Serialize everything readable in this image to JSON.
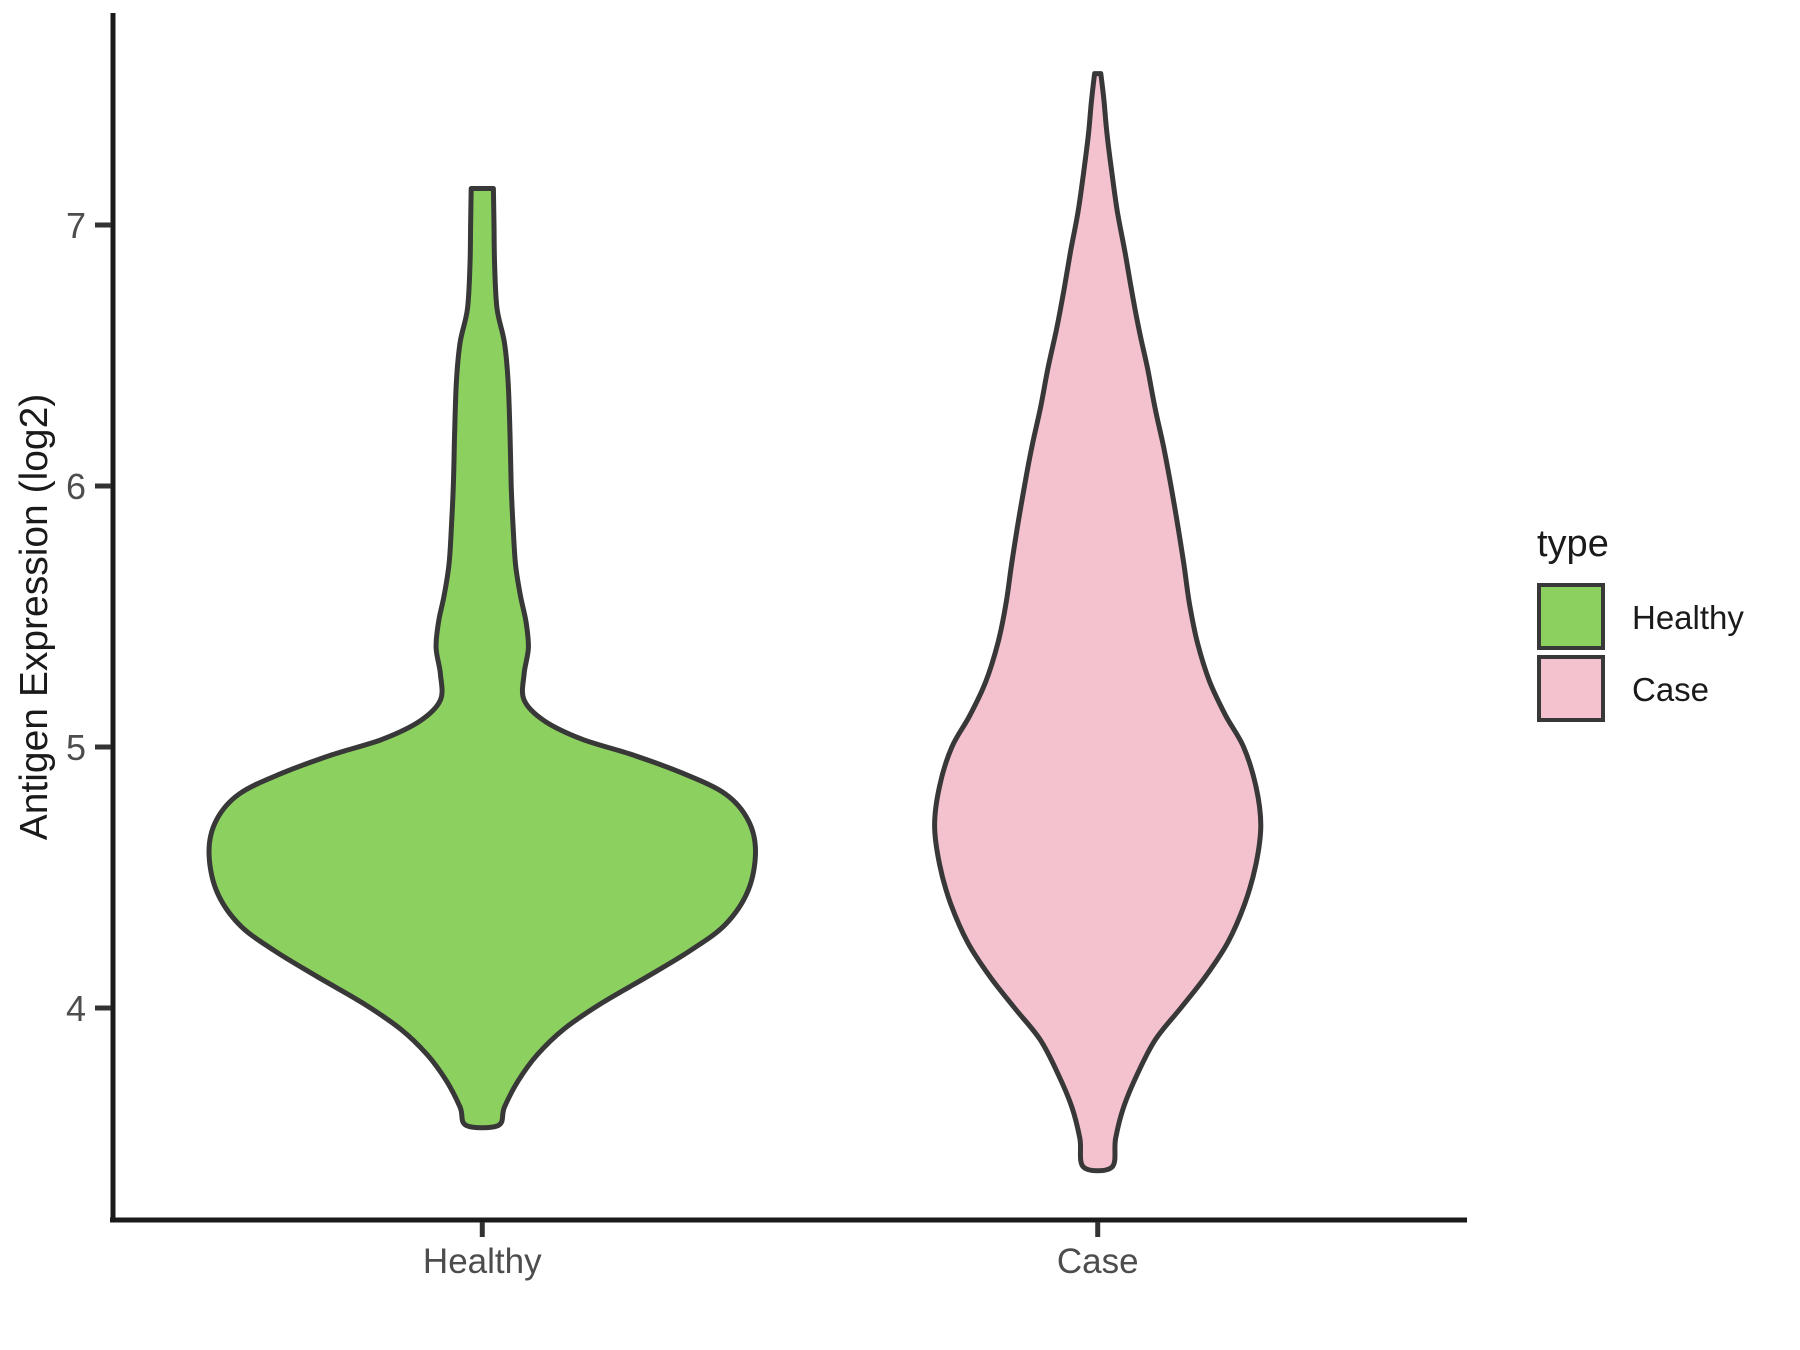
{
  "chart_data": {
    "type": "violin",
    "title": "",
    "xlabel": "",
    "ylabel": "Antigen Expression (log2)",
    "categories": [
      "Healthy",
      "Case"
    ],
    "y_tick_labels": [
      "4",
      "5",
      "6",
      "7"
    ],
    "y_tick_values": [
      4,
      5,
      6,
      7
    ],
    "ylim": [
      3.2,
      7.75
    ],
    "grid": "off",
    "theme": "classic-white",
    "legend": {
      "title": "type",
      "position": "right",
      "entries": [
        {
          "label": "Healthy",
          "fill": "#8CD05F"
        },
        {
          "label": "Case",
          "fill": "#F4C2CE"
        }
      ]
    },
    "colors": {
      "healthy_fill": "#8CD05F",
      "case_fill": "#F4C2CE",
      "outline": "#383838",
      "axis": "#1A1A1A",
      "tick_text": "#4D4D4D"
    },
    "series": [
      {
        "name": "Healthy",
        "fill": "#8CD05F",
        "outline": "#383838",
        "y_min": 3.55,
        "y_max": 7.14,
        "widest_at": 4.6,
        "density_profile": [
          [
            3.55,
            0.026
          ],
          [
            3.62,
            0.036
          ],
          [
            3.72,
            0.058
          ],
          [
            3.82,
            0.089
          ],
          [
            3.92,
            0.133
          ],
          [
            4.02,
            0.195
          ],
          [
            4.12,
            0.268
          ],
          [
            4.22,
            0.338
          ],
          [
            4.32,
            0.395
          ],
          [
            4.45,
            0.432
          ],
          [
            4.6,
            0.444
          ],
          [
            4.72,
            0.432
          ],
          [
            4.82,
            0.395
          ],
          [
            4.9,
            0.325
          ],
          [
            4.97,
            0.244
          ],
          [
            5.03,
            0.162
          ],
          [
            5.1,
            0.101
          ],
          [
            5.18,
            0.068
          ],
          [
            5.28,
            0.068
          ],
          [
            5.38,
            0.075
          ],
          [
            5.48,
            0.071
          ],
          [
            5.58,
            0.062
          ],
          [
            5.7,
            0.054
          ],
          [
            5.85,
            0.05
          ],
          [
            6.0,
            0.047
          ],
          [
            6.2,
            0.045
          ],
          [
            6.4,
            0.042
          ],
          [
            6.55,
            0.036
          ],
          [
            6.68,
            0.024
          ],
          [
            6.85,
            0.02
          ],
          [
            7.0,
            0.019
          ],
          [
            7.14,
            0.018
          ]
        ]
      },
      {
        "name": "Case",
        "fill": "#F4C2CE",
        "outline": "#383838",
        "y_min": 3.39,
        "y_max": 7.58,
        "widest_at": 4.7,
        "density_profile": [
          [
            3.39,
            0.023
          ],
          [
            3.5,
            0.029
          ],
          [
            3.62,
            0.042
          ],
          [
            3.75,
            0.065
          ],
          [
            3.88,
            0.094
          ],
          [
            4.0,
            0.135
          ],
          [
            4.12,
            0.175
          ],
          [
            4.25,
            0.211
          ],
          [
            4.4,
            0.239
          ],
          [
            4.55,
            0.257
          ],
          [
            4.7,
            0.265
          ],
          [
            4.85,
            0.257
          ],
          [
            5.0,
            0.237
          ],
          [
            5.12,
            0.208
          ],
          [
            5.25,
            0.182
          ],
          [
            5.4,
            0.162
          ],
          [
            5.55,
            0.149
          ],
          [
            5.7,
            0.14
          ],
          [
            5.85,
            0.13
          ],
          [
            6.0,
            0.119
          ],
          [
            6.15,
            0.107
          ],
          [
            6.3,
            0.093
          ],
          [
            6.45,
            0.081
          ],
          [
            6.6,
            0.067
          ],
          [
            6.75,
            0.055
          ],
          [
            6.9,
            0.044
          ],
          [
            7.05,
            0.032
          ],
          [
            7.2,
            0.023
          ],
          [
            7.35,
            0.015
          ],
          [
            7.48,
            0.01
          ],
          [
            7.58,
            0.005
          ]
        ]
      }
    ]
  }
}
